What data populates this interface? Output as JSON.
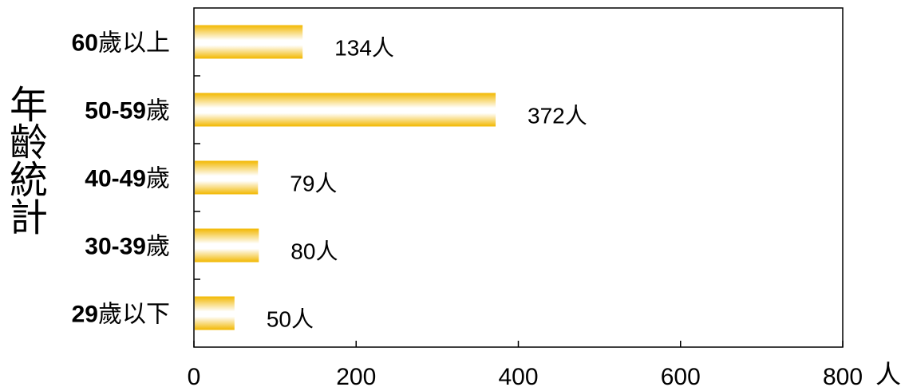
{
  "chart_data": {
    "type": "bar",
    "orientation": "horizontal",
    "title": "",
    "ylabel": "年齡統計",
    "xlabel": "",
    "x_unit": "人",
    "categories": [
      "60歲以上",
      "50-59歲",
      "40-49歲",
      "30-39歲",
      "29歲以下"
    ],
    "category_parts": [
      {
        "num": "60",
        "suffix": "歲以上"
      },
      {
        "num": "50-59",
        "suffix": "歲"
      },
      {
        "num": "40-49",
        "suffix": "歲"
      },
      {
        "num": "30-39",
        "suffix": "歲"
      },
      {
        "num": "29",
        "suffix": "歲以下"
      }
    ],
    "values": [
      134,
      372,
      79,
      80,
      50
    ],
    "data_labels": [
      "134人",
      "372人",
      "79人",
      "80人",
      "50人"
    ],
    "xlim": [
      0,
      800
    ],
    "xticks": [
      "0",
      "200",
      "400",
      "600",
      "800"
    ],
    "grid": false,
    "legend": "none",
    "colors": {
      "bar_edge": "#F2B800",
      "bar_mid": "#FFFFFF",
      "axis": "#000000"
    }
  }
}
